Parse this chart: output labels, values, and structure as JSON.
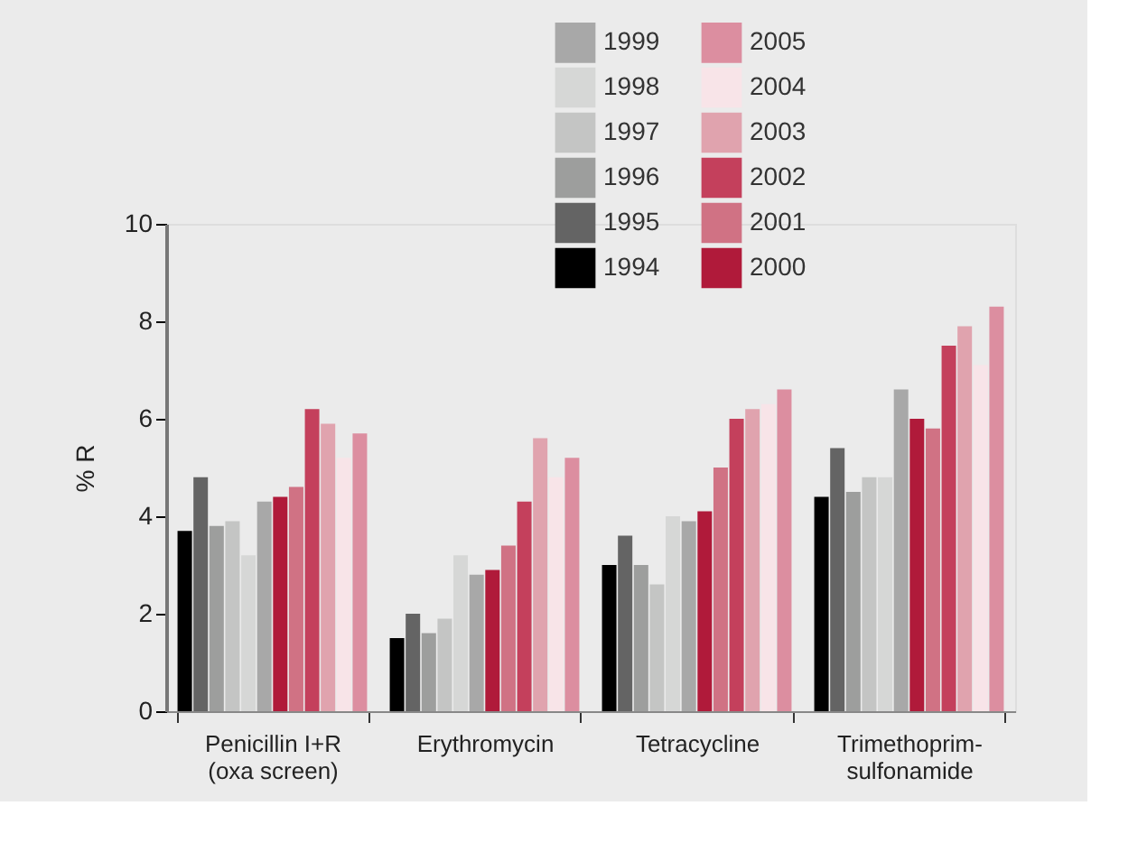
{
  "chart_data": {
    "type": "bar",
    "ylabel": "% R",
    "categories": [
      "Penicillin I+R\n(oxa screen)",
      "Erythromycin",
      "Tetracycline",
      "Trimethoprim-\nsulfonamide"
    ],
    "series": [
      {
        "name": "1994",
        "color": "#000000",
        "values": [
          3.7,
          1.5,
          3.0,
          4.4
        ]
      },
      {
        "name": "1995",
        "color": "#646464",
        "values": [
          4.8,
          2.0,
          3.6,
          5.4
        ]
      },
      {
        "name": "1996",
        "color": "#9d9e9d",
        "values": [
          3.8,
          1.6,
          3.0,
          4.5
        ]
      },
      {
        "name": "1997",
        "color": "#c4c5c4",
        "values": [
          3.9,
          1.9,
          2.6,
          4.8
        ]
      },
      {
        "name": "1998",
        "color": "#d6d7d6",
        "values": [
          3.2,
          3.2,
          4.0,
          4.8
        ]
      },
      {
        "name": "1999",
        "color": "#a8a8a8",
        "values": [
          4.3,
          2.8,
          3.9,
          6.6
        ]
      },
      {
        "name": "2000",
        "color": "#b01a3a",
        "values": [
          4.4,
          2.9,
          4.1,
          6.0
        ]
      },
      {
        "name": "2001",
        "color": "#d07284",
        "values": [
          4.6,
          3.4,
          5.0,
          5.8
        ]
      },
      {
        "name": "2002",
        "color": "#c4405c",
        "values": [
          6.2,
          4.3,
          6.0,
          7.5
        ]
      },
      {
        "name": "2003",
        "color": "#e0a3ae",
        "values": [
          5.9,
          5.6,
          6.2,
          7.9
        ]
      },
      {
        "name": "2004",
        "color": "#f8e4e8",
        "values": [
          5.2,
          4.8,
          6.3,
          7.1
        ]
      },
      {
        "name": "2005",
        "color": "#dc8ea0",
        "values": [
          5.7,
          5.2,
          6.6,
          8.3
        ]
      }
    ],
    "ylim": [
      0,
      10
    ],
    "yticks": [
      0,
      2,
      4,
      6,
      8,
      10
    ],
    "grid": false,
    "legend": "top right"
  }
}
